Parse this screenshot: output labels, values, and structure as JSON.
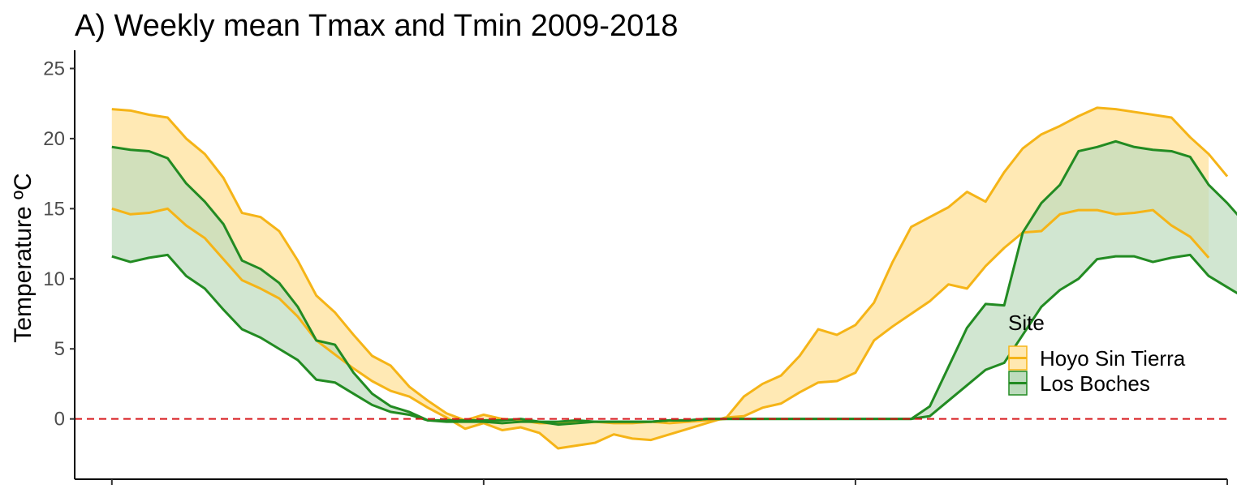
{
  "chart_data": {
    "type": "area",
    "title": "A) Weekly mean Tmax and Tmin 2009-2018",
    "ylabel": "Temperature ºC",
    "xlabel": "",
    "ylim": [
      -4.3,
      26.3
    ],
    "yticks": [
      0,
      5,
      10,
      15,
      20,
      25
    ],
    "xlim": [
      -1,
      61
    ],
    "xticks": [
      1,
      21,
      41,
      61
    ],
    "reference_line": {
      "y": 0,
      "style": "dashed",
      "color": "#d7191c"
    },
    "grid": false,
    "legend": {
      "title": "Site",
      "placement": "right"
    },
    "series": [
      {
        "name": "Hoyo Sin Tierra",
        "color": "#f5b417",
        "fill": "#ffe8b0",
        "tmax": [
          22.1,
          22.0,
          21.7,
          21.5,
          20.0,
          18.9,
          17.2,
          14.7,
          14.4,
          13.4,
          11.3,
          8.8,
          7.6,
          6.0,
          4.5,
          3.8,
          2.3,
          1.3,
          0.4,
          -0.1,
          0.3,
          0.0,
          -0.1,
          -0.3,
          -0.3,
          -0.2,
          -0.2,
          -0.3,
          -0.3,
          -0.2,
          -0.3,
          -0.2,
          -0.1,
          0.0,
          1.6,
          2.5,
          3.1,
          4.5,
          6.4,
          6.0,
          6.7,
          8.3,
          11.2,
          13.7,
          14.4,
          15.1,
          16.2,
          15.5,
          17.6,
          19.3,
          20.3,
          20.9,
          21.6,
          22.2,
          22.1,
          21.9,
          21.7,
          21.5,
          20.1,
          18.9,
          17.3
        ],
        "tmin": [
          15.0,
          14.6,
          14.7,
          15.0,
          13.8,
          12.9,
          11.4,
          9.9,
          9.3,
          8.6,
          7.3,
          5.6,
          4.6,
          3.6,
          2.7,
          2.0,
          1.6,
          0.8,
          0.1,
          -0.7,
          -0.3,
          -0.8,
          -0.6,
          -1.0,
          -2.1,
          -1.9,
          -1.7,
          -1.1,
          -1.4,
          -1.5,
          -1.1,
          -0.7,
          -0.3,
          0.1,
          0.2,
          0.8,
          1.1,
          1.9,
          2.6,
          2.7,
          3.3,
          5.6,
          6.6,
          7.5,
          8.4,
          9.6,
          9.3,
          10.9,
          12.2,
          13.3,
          13.4,
          14.6,
          14.9,
          14.9,
          14.6,
          14.7,
          14.9,
          13.8,
          13.0,
          11.5,
          null
        ]
      },
      {
        "name": "Los Boches",
        "color": "#228b22",
        "fill": "#bddcbd",
        "tmax": [
          19.4,
          19.2,
          19.1,
          18.6,
          16.8,
          15.5,
          13.9,
          11.3,
          10.7,
          9.7,
          8.0,
          5.6,
          5.3,
          3.3,
          1.8,
          0.9,
          0.5,
          -0.1,
          -0.1,
          -0.1,
          -0.1,
          -0.1,
          0.0,
          -0.2,
          -0.2,
          -0.1,
          -0.2,
          -0.2,
          -0.2,
          -0.2,
          -0.1,
          -0.1,
          0.0,
          0.0,
          0.0,
          0.0,
          0.0,
          0.0,
          0.0,
          0.0,
          0.0,
          0.0,
          0.0,
          0.0,
          0.9,
          3.7,
          6.5,
          8.2,
          8.1,
          13.3,
          15.4,
          16.7,
          19.1,
          19.4,
          19.8,
          19.4,
          19.2,
          19.1,
          18.7,
          16.7,
          15.4,
          13.9
        ],
        "tmin": [
          11.6,
          11.2,
          11.5,
          11.7,
          10.2,
          9.3,
          7.8,
          6.4,
          5.8,
          5.0,
          4.2,
          2.8,
          2.6,
          1.8,
          1.0,
          0.5,
          0.3,
          -0.1,
          -0.2,
          -0.2,
          -0.2,
          -0.3,
          -0.2,
          -0.2,
          -0.4,
          -0.3,
          -0.2,
          -0.2,
          -0.2,
          -0.2,
          -0.1,
          -0.1,
          0.0,
          0.0,
          0.0,
          0.0,
          0.0,
          0.0,
          0.0,
          0.0,
          0.0,
          0.0,
          0.0,
          0.0,
          0.2,
          1.3,
          2.4,
          3.5,
          4.0,
          6.0,
          8.0,
          9.2,
          10.0,
          11.4,
          11.6,
          11.6,
          11.2,
          11.5,
          11.7,
          10.2,
          9.4,
          8.6
        ]
      }
    ]
  }
}
